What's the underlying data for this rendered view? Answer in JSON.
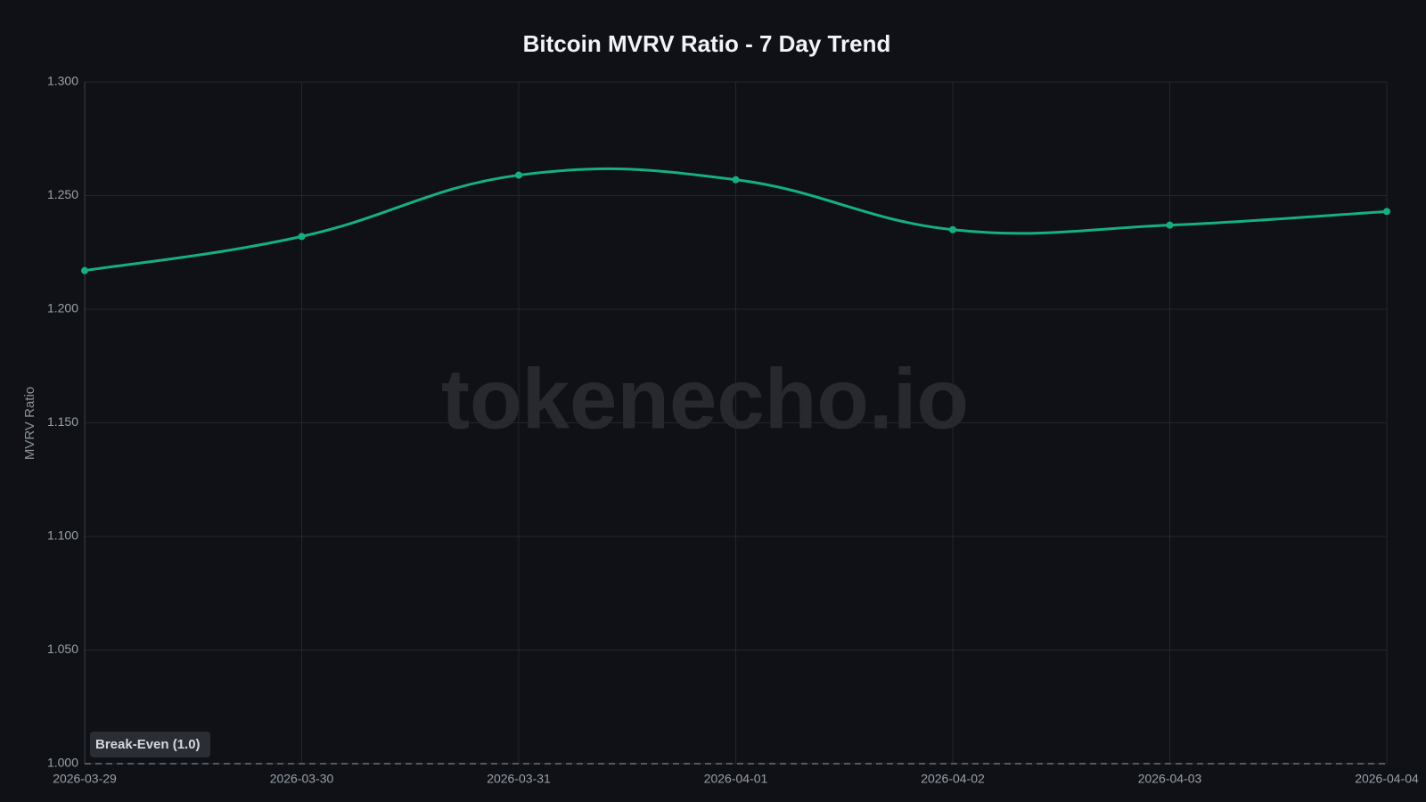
{
  "chart_data": {
    "type": "line",
    "title": "Bitcoin MVRV Ratio - 7 Day Trend",
    "y_label": "MVRV Ratio",
    "watermark": "tokenecho.io",
    "x": [
      "2026-03-29",
      "2026-03-30",
      "2026-03-31",
      "2026-04-01",
      "2026-04-02",
      "2026-04-03",
      "2026-04-04"
    ],
    "series": [
      {
        "name": "MVRV Ratio",
        "color": "#16b07f",
        "values": [
          1.217,
          1.232,
          1.259,
          1.257,
          1.235,
          1.237,
          1.243
        ]
      }
    ],
    "ylim": [
      1,
      1.3
    ],
    "yticks": [
      {
        "value": 1,
        "label": "1.000"
      },
      {
        "value": 1.05,
        "label": "1.050"
      },
      {
        "value": 1.1,
        "label": "1.100"
      },
      {
        "value": 1.15,
        "label": "1.150"
      },
      {
        "value": 1.2,
        "label": "1.200"
      },
      {
        "value": 1.25,
        "label": "1.250"
      },
      {
        "value": 1.3,
        "label": "1.300"
      }
    ],
    "grid": true,
    "reference_line": {
      "value": 1,
      "label": "Break-Even (1.0)"
    }
  }
}
